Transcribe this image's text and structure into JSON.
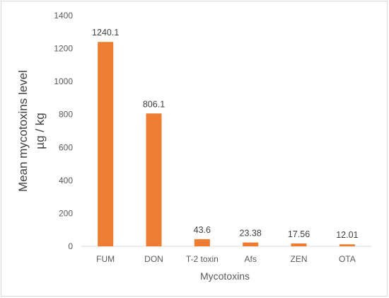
{
  "chart_data": {
    "type": "bar",
    "categories": [
      "FUM",
      "DON",
      "T-2 toxin",
      "Afs",
      "ZEN",
      "OTA"
    ],
    "values": [
      1240.1,
      806.1,
      43.6,
      23.38,
      17.56,
      12.01
    ],
    "data_labels": [
      "1240.1",
      "806.1",
      "43.6",
      "23.38",
      "17.56",
      "12.01"
    ],
    "title": "",
    "xlabel": "Mycotoxins",
    "ylabel": "Mean mycotoxins level",
    "ylabel_unit": "µg / kg",
    "ylim": [
      0,
      1400
    ],
    "yticks": [
      0,
      200,
      400,
      600,
      800,
      1000,
      1200,
      1400
    ],
    "grid": false,
    "legend": "none",
    "bar_color": "#ED7D31"
  }
}
